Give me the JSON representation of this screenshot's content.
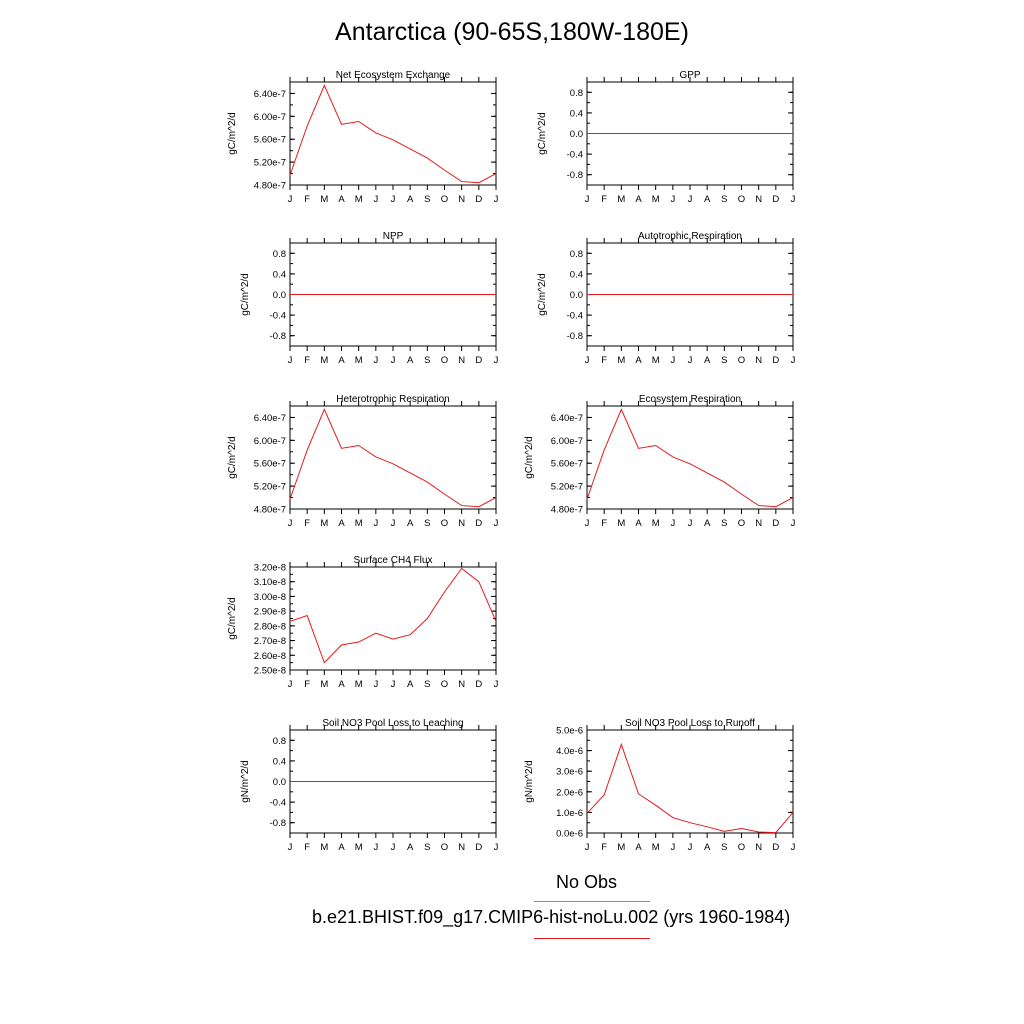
{
  "title": "Antarctica (90-65S,180W-180E)",
  "colors": {
    "model": "#e31a1c",
    "obs": "#8080ff",
    "axis": "#000000"
  },
  "months": [
    "J",
    "F",
    "M",
    "A",
    "M",
    "J",
    "J",
    "A",
    "S",
    "O",
    "N",
    "D",
    "J"
  ],
  "legend": {
    "obs_label": "No Obs",
    "model_label": "b.e21.BHIST.f09_g17.CMIP6-hist-noLu.002 (yrs 1960-1984)"
  },
  "chart_data": [
    {
      "type": "line",
      "title": "Net Ecosystem Exchange",
      "ylabel": "gC/m^2/d",
      "ylim": [
        4.8e-07,
        6.6e-07
      ],
      "yticks": [
        4.8e-07,
        5.2e-07,
        5.6e-07,
        6e-07,
        6.4e-07
      ],
      "ytick_labels": [
        "4.80e-7",
        "5.20e-7",
        "5.60e-7",
        "6.00e-7",
        "6.40e-7"
      ],
      "x": [
        "J",
        "F",
        "M",
        "A",
        "M",
        "J",
        "J",
        "A",
        "S",
        "O",
        "N",
        "D",
        "J"
      ],
      "series": [
        {
          "values": [
            4.97e-07,
            5.83e-07,
            6.54e-07,
            5.86e-07,
            5.91e-07,
            5.71e-07,
            5.59e-07,
            5.43e-07,
            5.27e-07,
            5.06e-07,
            4.86e-07,
            4.84e-07,
            5e-07
          ]
        }
      ]
    },
    {
      "type": "line",
      "title": "GPP",
      "ylabel": "gC/m^2/d",
      "ylim": [
        -1.0,
        1.0
      ],
      "yticks": [
        -0.8,
        -0.4,
        0.0,
        0.4,
        0.8
      ],
      "ytick_labels": [
        "-0.8",
        "-0.4",
        "0.0",
        "0.4",
        "0.8"
      ],
      "x": [
        "J",
        "F",
        "M",
        "A",
        "M",
        "J",
        "J",
        "A",
        "S",
        "O",
        "N",
        "D",
        "J"
      ],
      "series": [
        {
          "values": [
            0,
            0,
            0,
            0,
            0,
            0,
            0,
            0,
            0,
            0,
            0,
            0,
            0
          ]
        }
      ]
    },
    {
      "type": "line",
      "title": "NPP",
      "ylabel": "gC/m^2/d",
      "ylim": [
        -1.0,
        1.0
      ],
      "yticks": [
        -0.8,
        -0.4,
        0.0,
        0.4,
        0.8
      ],
      "ytick_labels": [
        "-0.8",
        "-0.4",
        "0.0",
        "0.4",
        "0.8"
      ],
      "x": [
        "J",
        "F",
        "M",
        "A",
        "M",
        "J",
        "J",
        "A",
        "S",
        "O",
        "N",
        "D",
        "J"
      ],
      "series": [
        {
          "values": [
            0,
            0,
            0,
            0,
            0,
            0,
            0,
            0,
            0,
            0,
            0,
            0,
            0
          ]
        }
      ]
    },
    {
      "type": "line",
      "title": "Autotrophic Respiration",
      "ylabel": "gC/m^2/d",
      "ylim": [
        -1.0,
        1.0
      ],
      "yticks": [
        -0.8,
        -0.4,
        0.0,
        0.4,
        0.8
      ],
      "ytick_labels": [
        "-0.8",
        "-0.4",
        "0.0",
        "0.4",
        "0.8"
      ],
      "x": [
        "J",
        "F",
        "M",
        "A",
        "M",
        "J",
        "J",
        "A",
        "S",
        "O",
        "N",
        "D",
        "J"
      ],
      "series": [
        {
          "values": [
            0,
            0,
            0,
            0,
            0,
            0,
            0,
            0,
            0,
            0,
            0,
            0,
            0
          ]
        }
      ]
    },
    {
      "type": "line",
      "title": "Heterotrophic Respiration",
      "ylabel": "gC/m^2/d",
      "ylim": [
        4.8e-07,
        6.6e-07
      ],
      "yticks": [
        4.8e-07,
        5.2e-07,
        5.6e-07,
        6e-07,
        6.4e-07
      ],
      "ytick_labels": [
        "4.80e-7",
        "5.20e-7",
        "5.60e-7",
        "6.00e-7",
        "6.40e-7"
      ],
      "x": [
        "J",
        "F",
        "M",
        "A",
        "M",
        "J",
        "J",
        "A",
        "S",
        "O",
        "N",
        "D",
        "J"
      ],
      "series": [
        {
          "values": [
            4.97e-07,
            5.83e-07,
            6.54e-07,
            5.86e-07,
            5.91e-07,
            5.71e-07,
            5.59e-07,
            5.43e-07,
            5.27e-07,
            5.06e-07,
            4.86e-07,
            4.84e-07,
            5e-07
          ]
        }
      ]
    },
    {
      "type": "line",
      "title": "Ecosystem Respiration",
      "ylabel": "gC/m^2/d",
      "ylim": [
        4.8e-07,
        6.6e-07
      ],
      "yticks": [
        4.8e-07,
        5.2e-07,
        5.6e-07,
        6e-07,
        6.4e-07
      ],
      "ytick_labels": [
        "4.80e-7",
        "5.20e-7",
        "5.60e-7",
        "6.00e-7",
        "6.40e-7"
      ],
      "x": [
        "J",
        "F",
        "M",
        "A",
        "M",
        "J",
        "J",
        "A",
        "S",
        "O",
        "N",
        "D",
        "J"
      ],
      "series": [
        {
          "values": [
            4.97e-07,
            5.83e-07,
            6.54e-07,
            5.86e-07,
            5.91e-07,
            5.71e-07,
            5.59e-07,
            5.43e-07,
            5.27e-07,
            5.06e-07,
            4.86e-07,
            4.84e-07,
            5e-07
          ]
        }
      ]
    },
    {
      "type": "line",
      "title": "Surface CH4 Flux",
      "ylabel": "gC/m^2/d",
      "ylim": [
        2.5e-08,
        3.2e-08
      ],
      "yticks": [
        2.5e-08,
        2.6e-08,
        2.7e-08,
        2.8e-08,
        2.9e-08,
        3e-08,
        3.1e-08,
        3.2e-08
      ],
      "ytick_labels": [
        "2.50e-8",
        "2.60e-8",
        "2.70e-8",
        "2.80e-8",
        "2.90e-8",
        "3.00e-8",
        "3.10e-8",
        "3.20e-8"
      ],
      "x": [
        "J",
        "F",
        "M",
        "A",
        "M",
        "J",
        "J",
        "A",
        "S",
        "O",
        "N",
        "D",
        "J"
      ],
      "series": [
        {
          "values": [
            2.83e-08,
            2.87e-08,
            2.55e-08,
            2.67e-08,
            2.69e-08,
            2.75e-08,
            2.71e-08,
            2.74e-08,
            2.85e-08,
            3.03e-08,
            3.19e-08,
            3.1e-08,
            2.83e-08
          ]
        }
      ]
    },
    {
      "type": "line",
      "title": "Soil NO3 Pool Loss to Leaching",
      "ylabel": "gN/m^2/d",
      "ylim": [
        -1.0,
        1.0
      ],
      "yticks": [
        -0.8,
        -0.4,
        0.0,
        0.4,
        0.8
      ],
      "ytick_labels": [
        "-0.8",
        "-0.4",
        "0.0",
        "0.4",
        "0.8"
      ],
      "x": [
        "J",
        "F",
        "M",
        "A",
        "M",
        "J",
        "J",
        "A",
        "S",
        "O",
        "N",
        "D",
        "J"
      ],
      "series": [
        {
          "values": [
            0,
            0,
            0,
            0,
            0,
            0,
            0,
            0,
            0,
            0,
            0,
            0,
            0
          ]
        }
      ]
    },
    {
      "type": "line",
      "title": "Soil NO3 Pool Loss to Runoff",
      "ylabel": "gN/m^2/d",
      "ylim": [
        0.0,
        5e-06
      ],
      "yticks": [
        0.0,
        1e-06,
        2e-06,
        3e-06,
        4e-06,
        5e-06
      ],
      "ytick_labels": [
        "0.0e-6",
        "1.0e-6",
        "2.0e-6",
        "3.0e-6",
        "4.0e-6",
        "5.0e-6"
      ],
      "x": [
        "J",
        "F",
        "M",
        "A",
        "M",
        "J",
        "J",
        "A",
        "S",
        "O",
        "N",
        "D",
        "J"
      ],
      "series": [
        {
          "values": [
            9.5e-07,
            1.85e-06,
            4.3e-06,
            1.9e-06,
            1.35e-06,
            7.5e-07,
            5e-07,
            3e-07,
            8e-08,
            2.2e-07,
            5e-08,
            2e-08,
            1e-06
          ]
        }
      ]
    }
  ]
}
